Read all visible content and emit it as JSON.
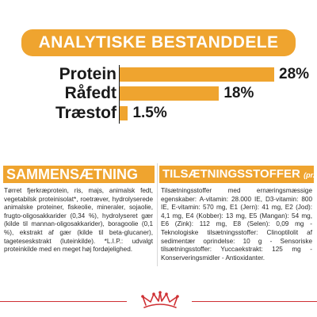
{
  "title": "ANALYTISKE BESTANDDELE",
  "chart_data": {
    "type": "bar",
    "categories": [
      "Protein",
      "Råfedt",
      "Træstof"
    ],
    "values": [
      28,
      18,
      1.5
    ],
    "value_labels": [
      "28%",
      "18%",
      "1.5%"
    ],
    "title": "ANALYTISKE BESTANDDELE",
    "xlim": [
      0,
      28
    ]
  },
  "composition": {
    "heading": "SAMMENSÆTNING",
    "text": "Tørret fjerkræprotein, ris, majs, animalsk fedt, vegetabilsk proteinisolat*, roetræver, hydrolyserede animalske proteiner, fiskeolie, mineraler, sojaolie, frugto-oligosakkarider (0,34 %), hydrolyseret gær (kilde til mannan-oligosakkarider), boragoolie (0,1 %), ekstrakt af gær (kilde til beta-glucaner), tageteseskstrakt (luteinkilde). *L.I.P.: udvalgt proteinkilde med en meget høj fordøjelighed."
  },
  "additives": {
    "heading": "TILSÆTNINGSSTOFFER",
    "heading_suffix": "(pr. kg)",
    "text": "Tilsætningsstoffer med ernæringsmæssige egenskaber: A-vitamin: 28.000 IE, D3-vitamin: 800 IE, E-vitamin: 570 mg, E1 (Jern): 41 mg, E2 (Jod): 4,1 mg, E4 (Kobber): 13 mg, E5 (Mangan): 54 mg, E6 (Zink): 112 mg, E8 (Selen): 0,09 mg - Teknologiske tilsætningsstoffer: Clinoptilolit af sedimentær oprindelse: 10 g - Sensoriske tilsætningsstoffer: Yuccaekstrakt: 125 mg - Konserveringsmidler - Antioxidanter."
  },
  "colors": {
    "accent": "#efa42f",
    "brand_red": "#cf2f33",
    "text": "#1a1a1a"
  },
  "icons": {
    "footer": "royal-canin-crown-icon"
  }
}
